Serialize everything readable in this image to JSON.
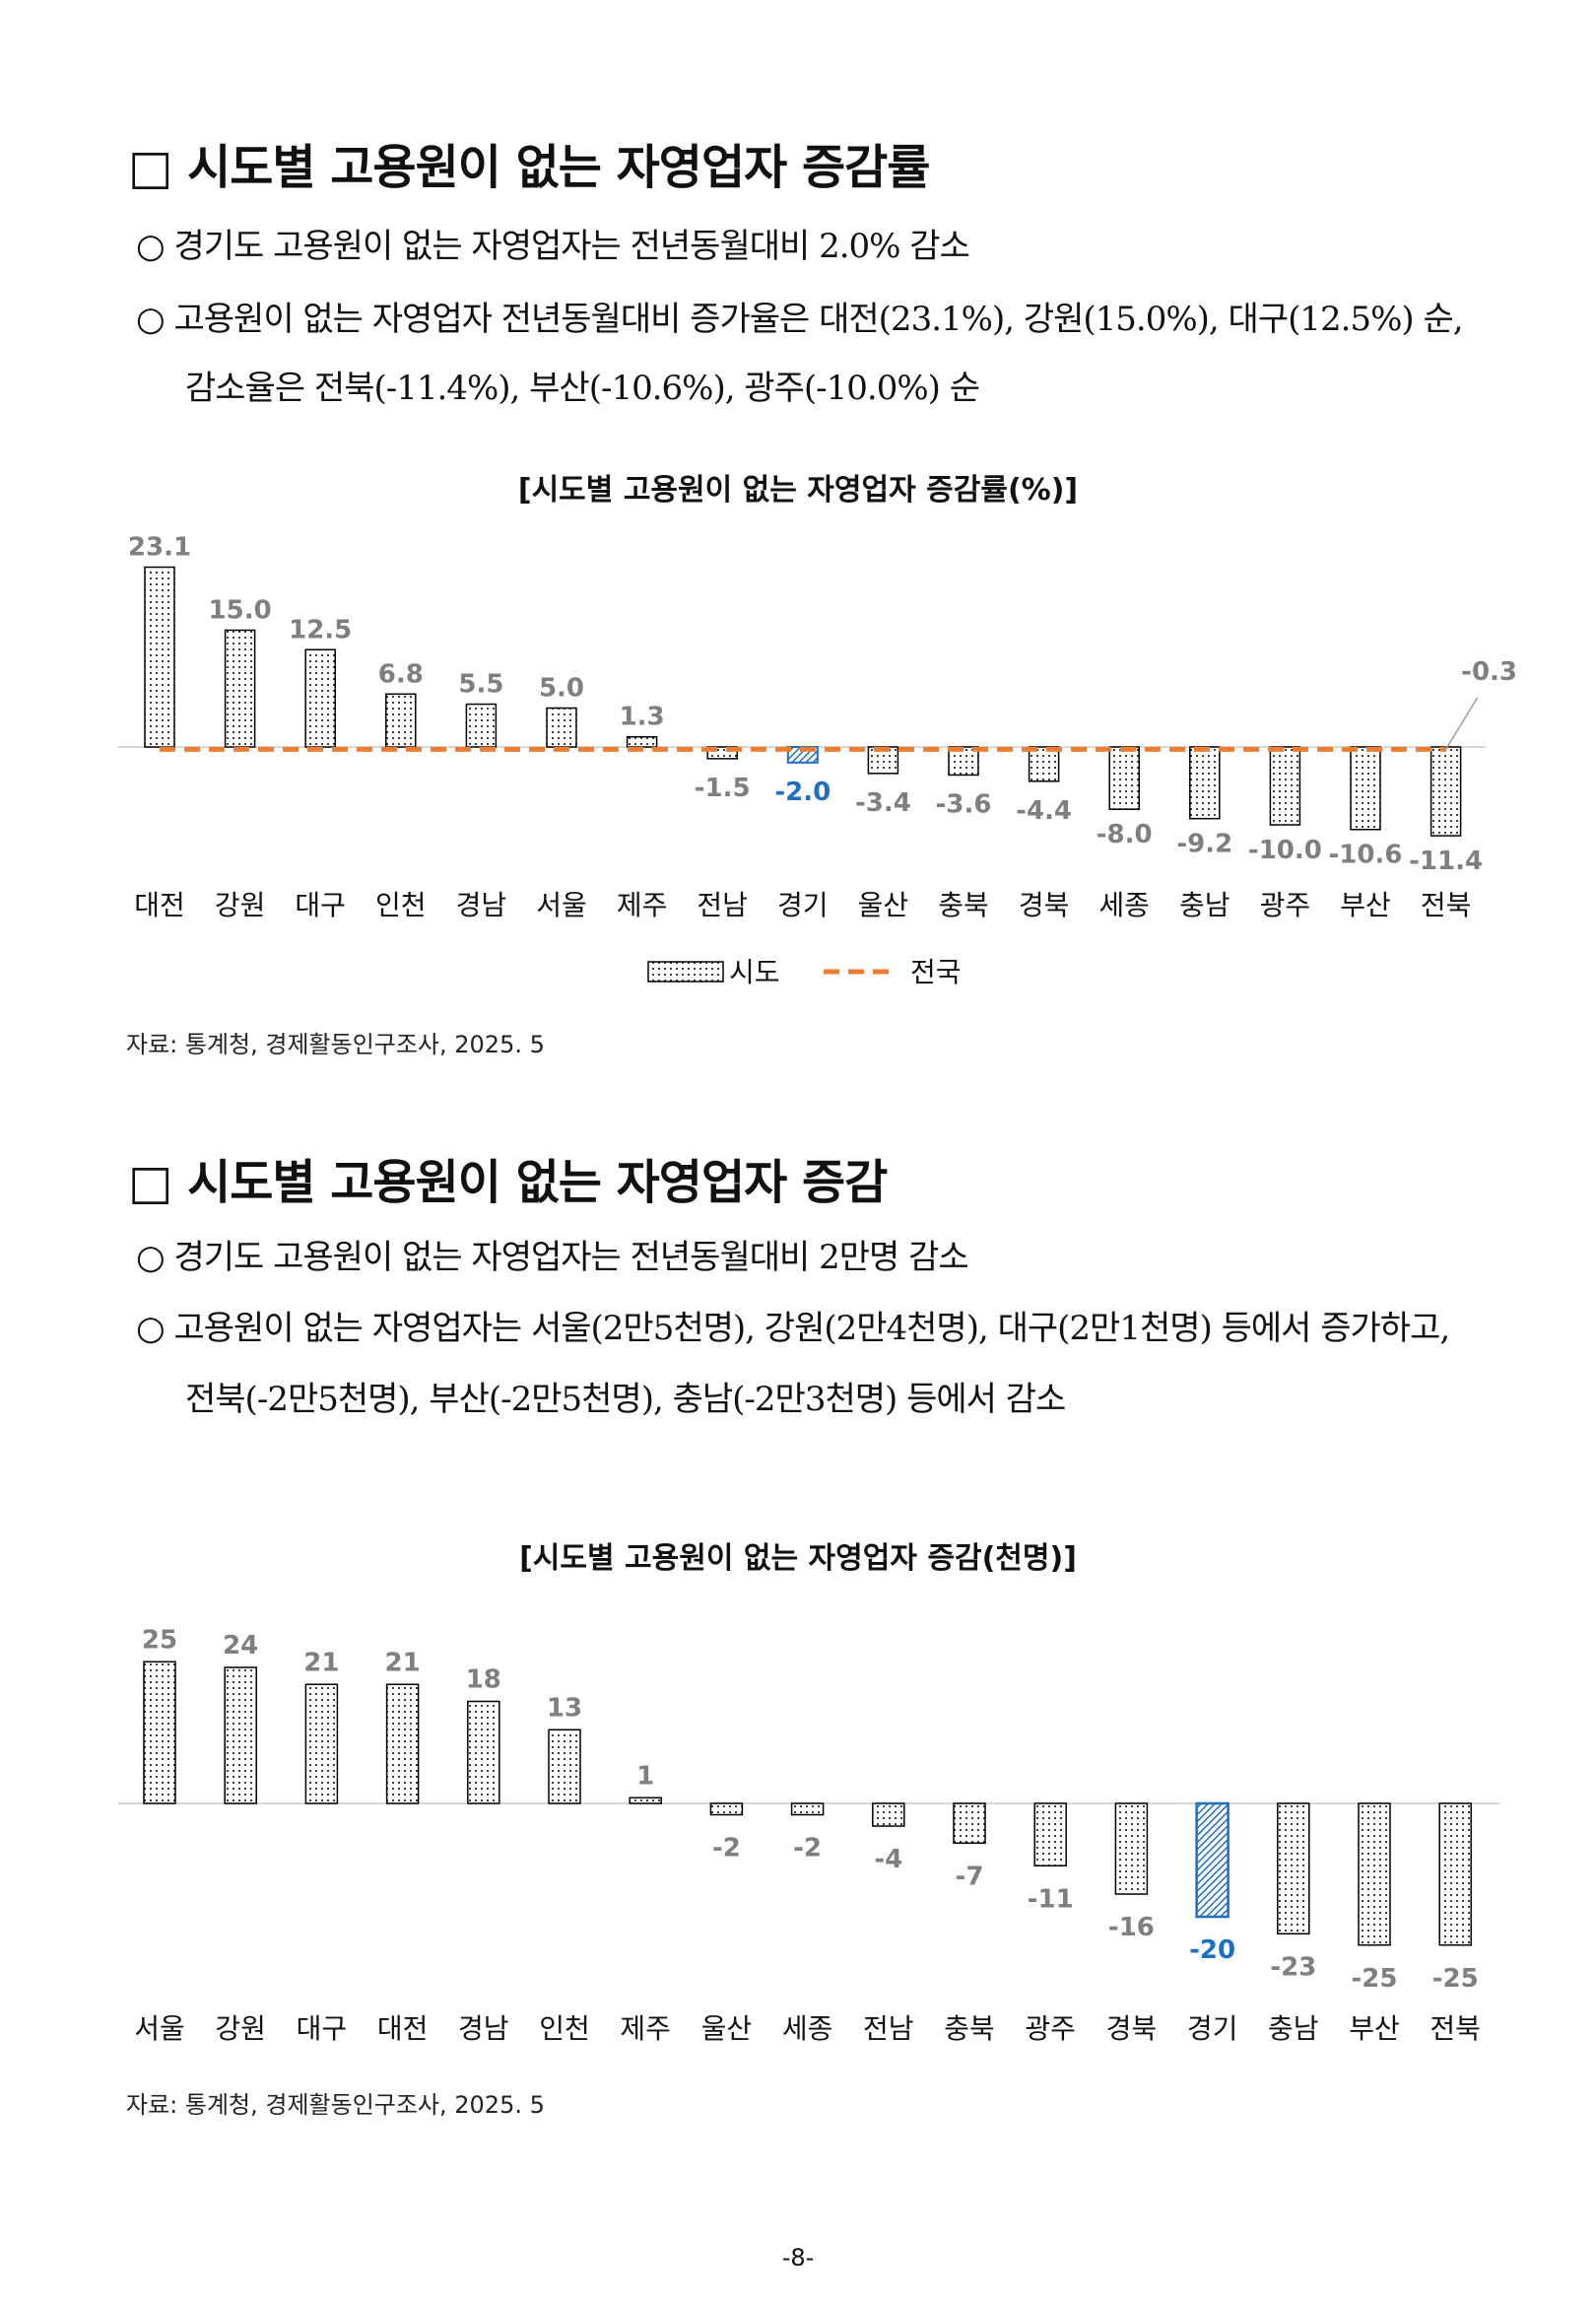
{
  "section1": {
    "heading": "□ 시도별 고용원이 없는 자영업자 증감률",
    "bullets": [
      "○ 경기도 고용원이 없는 자영업자는 전년동월대비 2.0% 감소",
      "○ 고용원이 없는 자영업자 전년동월대비 증가율은 대전(23.1%), 강원(15.0%),  대구(12.5%) 순,"
    ],
    "bullet_cont": "감소율은 전북(-11.4%), 부산(-10.6%), 광주(-10.0%) 순",
    "chart_title": "[시도별 고용원이 없는 자영업자  증감률(%)]",
    "source": "자료: 통계청, 경제활동인구조사, 2025. 5"
  },
  "section2": {
    "heading": "□ 시도별 고용원이 없는 자영업자 증감",
    "bullets": [
      "○ 경기도 고용원이 없는 자영업자는 전년동월대비 2만명 감소",
      "○ 고용원이 없는 자영업자는 서울(2만5천명), 강원(2만4천명), 대구(2만1천명) 등에서 증가하고,"
    ],
    "bullet_cont": "전북(-2만5천명), 부산(-2만5천명), 충남(-2만3천명) 등에서 감소",
    "chart_title": "[시도별 고용원이 없는 자영업자 증감(천명)]",
    "source": "자료: 통계청, 경제활동인구조사, 2025. 5"
  },
  "page_number": "-8-",
  "colors": {
    "highlight": "#1f6fbf",
    "national_line": "#ed7d31",
    "label_gray": "#7f7f7f",
    "axis": "#d9d9d9"
  },
  "chart_data": [
    {
      "type": "bar",
      "title": "[시도별 고용원이 없는 자영업자  증감률(%)]",
      "categories": [
        "대전",
        "강원",
        "대구",
        "인천",
        "경남",
        "서울",
        "제주",
        "전남",
        "경기",
        "울산",
        "충북",
        "경북",
        "세종",
        "충남",
        "광주",
        "부산",
        "전북"
      ],
      "series": [
        {
          "name": "시도",
          "values": [
            23.1,
            15.0,
            12.5,
            6.8,
            5.5,
            5.0,
            1.3,
            -1.5,
            -2.0,
            -3.4,
            -3.6,
            -4.4,
            -8.0,
            -9.2,
            -10.0,
            -10.6,
            -11.4
          ]
        },
        {
          "name": "전국",
          "type": "line",
          "values": [
            -0.3,
            -0.3,
            -0.3,
            -0.3,
            -0.3,
            -0.3,
            -0.3,
            -0.3,
            -0.3,
            -0.3,
            -0.3,
            -0.3,
            -0.3,
            -0.3,
            -0.3,
            -0.3,
            -0.3
          ]
        }
      ],
      "data_labels": [
        "23.1",
        "15.0",
        "12.5",
        "6.8",
        "5.5",
        "5.0",
        "1.3",
        "-1.5",
        "-2.0",
        "-3.4",
        "-3.6",
        "-4.4",
        "-8.0",
        "-9.2",
        "-10.0",
        "-10.6",
        "-11.4"
      ],
      "national_label": "-0.3",
      "highlight": "경기",
      "legend": [
        "시도",
        "전국"
      ],
      "legend_position": "bottom",
      "grid": false
    },
    {
      "type": "bar",
      "title": "[시도별 고용원이 없는 자영업자 증감(천명)]",
      "categories": [
        "서울",
        "강원",
        "대구",
        "대전",
        "경남",
        "인천",
        "제주",
        "울산",
        "세종",
        "전남",
        "충북",
        "광주",
        "경북",
        "경기",
        "충남",
        "부산",
        "전북"
      ],
      "values": [
        25,
        24,
        21,
        21,
        18,
        13,
        1,
        -2,
        -2,
        -4,
        -7,
        -11,
        -16,
        -20,
        -23,
        -25,
        -25
      ],
      "data_labels": [
        "25",
        "24",
        "21",
        "21",
        "18",
        "13",
        "1",
        "-2",
        "-2",
        "-4",
        "-7",
        "-11",
        "-16",
        "-20",
        "-23",
        "-25",
        "-25"
      ],
      "highlight": "경기",
      "grid": false
    }
  ]
}
